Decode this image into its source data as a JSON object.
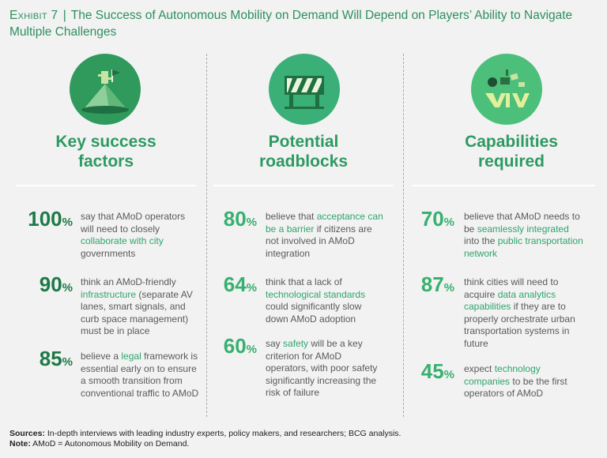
{
  "title": {
    "exhibit": "Exhibit 7",
    "separator": "|",
    "text": "The Success of Autonomous Mobility on Demand Will Depend on Players’ Ability to Navigate Multiple Challenges"
  },
  "colors": {
    "accent_green": "#2d9a62",
    "dark_green": "#1c7a47",
    "light_green": "#37b06f",
    "background": "#f2f2f2"
  },
  "columns": [
    {
      "icon": "mountain-flag-icon",
      "title_line1": "Key success",
      "title_line2": "factors",
      "stats": [
        {
          "percent": "100",
          "pre": "say that AMoD operators will need to closely ",
          "highlight": "collaborate with city",
          "post": " governments",
          "wrapped_highlight": "collaborate with city",
          "trailing": "governments"
        },
        {
          "percent": "90",
          "pre": "think an AMoD-friendly ",
          "highlight": "infrastructure",
          "post": " (separate AV lanes, smart signals, and curb space management) must be in place"
        },
        {
          "percent": "85",
          "pre": "believe a ",
          "highlight": "legal",
          "post": " framework is essential early on to ensure a smooth transition from conventional traffic to AMoD"
        }
      ]
    },
    {
      "icon": "roadblock-barrier-icon",
      "title_line1": "Potential",
      "title_line2": "roadblocks",
      "stats": [
        {
          "percent": "80",
          "pre": "believe that ",
          "highlight": "acceptance can be a barrier",
          "post": " if citizens are not involved in AMoD integration"
        },
        {
          "percent": "64",
          "pre": "think that a lack of ",
          "highlight": "technological standards",
          "post": " could significantly slow down AMoD adoption"
        },
        {
          "percent": "60",
          "pre": "say ",
          "highlight": "safety",
          "post": " will be a key criterion for AMoD operators, with poor safety significantly increasing the risk of failure"
        }
      ]
    },
    {
      "icon": "capabilities-icon",
      "title_line1": "Capabilities",
      "title_line2": "required",
      "stats": [
        {
          "percent": "70",
          "pre": "believe that AMoD needs to be ",
          "highlight": "seamlessly integrated",
          "post": " into the ",
          "highlight2": "public transportation network",
          "post2": ""
        },
        {
          "percent": "87",
          "pre": "think cities will need to acquire ",
          "highlight": "data analytics capabilities",
          "post": " if they are to properly orchestrate urban transportation systems in future"
        },
        {
          "percent": "45",
          "pre": "expect ",
          "highlight": "technology companies",
          "post": " to be the first operators of AMoD"
        }
      ]
    }
  ],
  "percent_sign": "%",
  "footer": {
    "sources_label": "Sources:",
    "sources_text": " In-depth interviews with leading industry experts, policy makers, and researchers; BCG analysis.",
    "note_label": "Note:",
    "note_text": " AMoD = Autonomous Mobility on Demand."
  }
}
